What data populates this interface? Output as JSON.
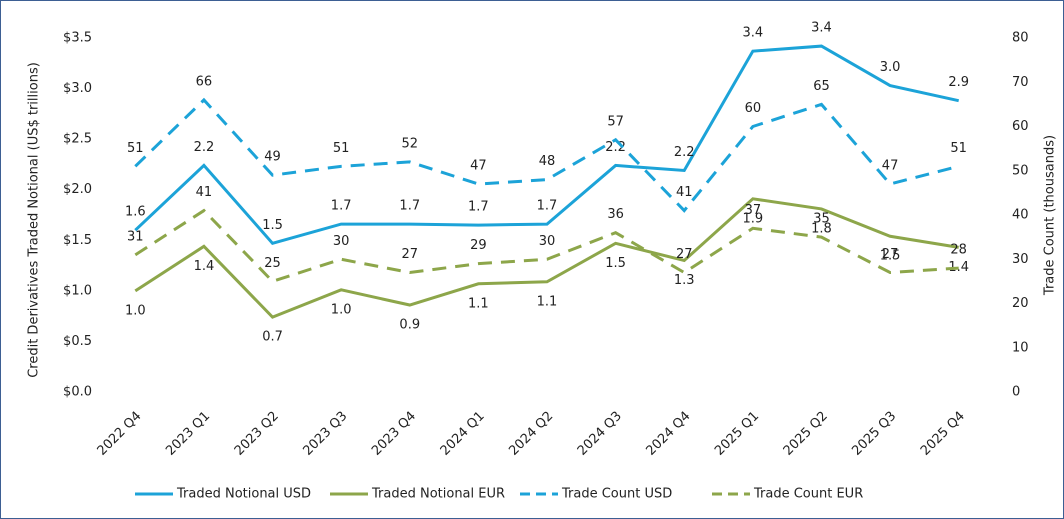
{
  "chart_data": {
    "type": "line",
    "categories": [
      "2022 Q4",
      "2023 Q1",
      "2023 Q2",
      "2023 Q3",
      "2023 Q4",
      "2024 Q1",
      "2024 Q2",
      "2024 Q3",
      "2024 Q4",
      "2025 Q1",
      "2025 Q2",
      "2025 Q3",
      "2025 Q4"
    ],
    "ylabel": "Credit Derivatives Traded Notional (US$ trillions)",
    "y2label": "Trade  Count (thousands)",
    "ylim": [
      0,
      3.5
    ],
    "yticks": [
      {
        "value": 0,
        "label": "$0.0"
      },
      {
        "value": 0.5,
        "label": "$0.5"
      },
      {
        "value": 1,
        "label": "$1.0"
      },
      {
        "value": 1.5,
        "label": "$1.5"
      },
      {
        "value": 2,
        "label": "$2.0"
      },
      {
        "value": 2.5,
        "label": "$2.5"
      },
      {
        "value": 3,
        "label": "$3.0"
      },
      {
        "value": 3.5,
        "label": "$3.5"
      }
    ],
    "y2lim": [
      0,
      80
    ],
    "y2ticks": [
      0,
      10,
      20,
      30,
      40,
      50,
      60,
      70,
      80
    ],
    "legend": "bottom",
    "series": [
      {
        "name": "Traded Notional  USD",
        "color": "#1ca3d8",
        "line_style": "solid",
        "axis": "y",
        "values": [
          1.6,
          2.24,
          1.47,
          1.66,
          1.66,
          1.65,
          1.66,
          2.24,
          2.19,
          3.37,
          3.42,
          3.03,
          2.88
        ],
        "value_labels": [
          "1.6",
          "2.2",
          "1.5",
          "1.7",
          "1.7",
          "1.7",
          "1.7",
          "2.2",
          "2.2",
          "3.4",
          "3.4",
          "3.0",
          "2.9"
        ]
      },
      {
        "name": "Traded Notional EUR",
        "color": "#8da64a",
        "line_style": "solid",
        "axis": "y",
        "values": [
          1.0,
          1.44,
          0.74,
          1.01,
          0.86,
          1.07,
          1.09,
          1.47,
          1.3,
          1.91,
          1.81,
          1.54,
          1.43
        ],
        "value_labels": [
          "1.0",
          "1.4",
          "0.7",
          "1.0",
          "0.9",
          "1.1",
          "1.1",
          "1.5",
          "1.3",
          "1.9",
          "1.8",
          "1.5",
          "1.4"
        ]
      },
      {
        "name": "Trade Count USD",
        "color": "#1ca3d8",
        "line_style": "dashed",
        "axis": "y2",
        "values": [
          51,
          66,
          49,
          51,
          52,
          47,
          48,
          57,
          41,
          60,
          65,
          47,
          51
        ]
      },
      {
        "name": "Trade Count EUR",
        "color": "#8da64a",
        "line_style": "dashed",
        "axis": "y2",
        "values": [
          31,
          41,
          25,
          30,
          27,
          29,
          30,
          36,
          27,
          37,
          35,
          27,
          28
        ]
      }
    ]
  }
}
